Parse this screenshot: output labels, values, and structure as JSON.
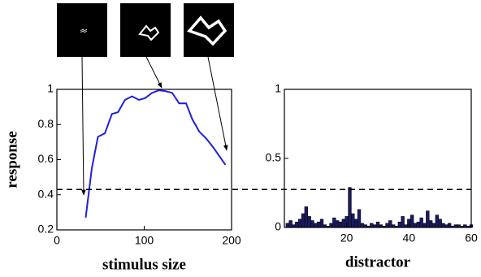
{
  "chart_data": [
    {
      "type": "line",
      "xlabel": "stimulus size",
      "ylabel": "response",
      "x": [
        33,
        40,
        47,
        55,
        63,
        70,
        78,
        86,
        94,
        101,
        109,
        117,
        124,
        132,
        140,
        148,
        155,
        163,
        171,
        179,
        186,
        193
      ],
      "series": [
        {
          "color": "#1f1fe0",
          "values": [
            0.27,
            0.55,
            0.73,
            0.75,
            0.86,
            0.87,
            0.94,
            0.96,
            0.94,
            0.95,
            0.98,
            0.995,
            0.99,
            0.98,
            0.92,
            0.92,
            0.83,
            0.76,
            0.72,
            0.67,
            0.62,
            0.57
          ]
        }
      ],
      "xlim": [
        0,
        200
      ],
      "xticks": [
        0,
        100,
        200
      ],
      "ylim": [
        0.2,
        1
      ],
      "yticks": [
        0.2,
        0.4,
        0.6,
        0.8,
        1
      ],
      "reference_line": 0.43
    },
    {
      "type": "bar",
      "xlabel": "distractor",
      "x": [
        1,
        2,
        3,
        4,
        5,
        6,
        7,
        8,
        9,
        10,
        11,
        12,
        13,
        14,
        15,
        16,
        17,
        18,
        19,
        20,
        21,
        22,
        23,
        24,
        25,
        26,
        27,
        28,
        29,
        30,
        31,
        32,
        33,
        34,
        35,
        36,
        37,
        38,
        39,
        40,
        41,
        42,
        43,
        44,
        45,
        46,
        47,
        48,
        49,
        50,
        51,
        52,
        53,
        54,
        55,
        56,
        57,
        58,
        59,
        60
      ],
      "values": [
        0.03,
        0.05,
        0.02,
        0.04,
        0.06,
        0.1,
        0.15,
        0.08,
        0.05,
        0.03,
        0.04,
        0.06,
        0.02,
        0.01,
        0.03,
        0.07,
        0.05,
        0.04,
        0.06,
        0.08,
        0.29,
        0.1,
        0.06,
        0.13,
        0.03,
        0.02,
        0.01,
        0.03,
        0.02,
        0.04,
        0.02,
        0.01,
        0.03,
        0.05,
        0.02,
        0.01,
        0.04,
        0.08,
        0.02,
        0.06,
        0.09,
        0.03,
        0.04,
        0.07,
        0.03,
        0.12,
        0.05,
        0.03,
        0.09,
        0.06,
        0.03,
        0.02,
        0.03,
        0.01,
        0.02,
        0.02,
        0.01,
        0.02,
        0.01,
        0.02
      ],
      "color": "#1a1a5e",
      "xlim": [
        0,
        60
      ],
      "xticks": [
        20,
        40,
        60
      ],
      "ylim": [
        0,
        1
      ],
      "yticks": [
        0,
        0.5,
        1
      ]
    }
  ]
}
